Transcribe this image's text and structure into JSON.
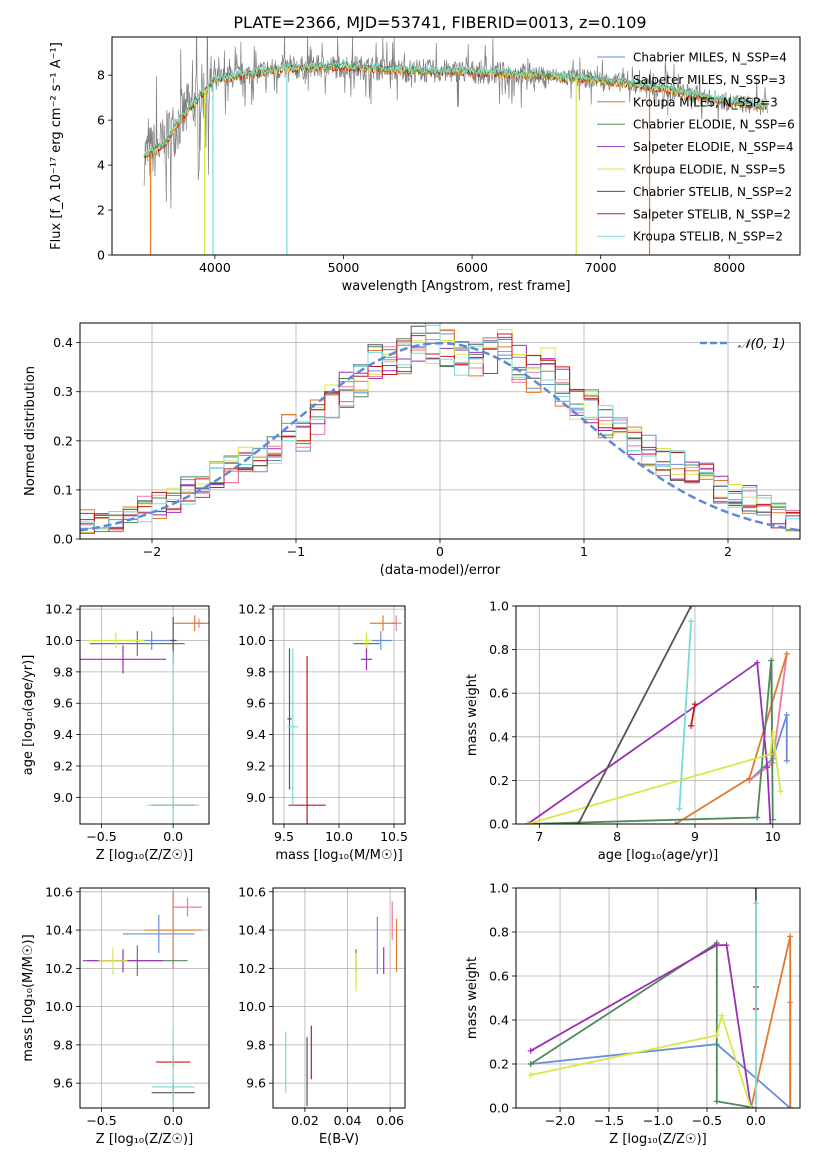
{
  "figure": {
    "title": "PLATE=2366, MJD=53741, FIBERID=0013, z=0.109"
  },
  "colors": {
    "chabrier_miles": "#6a8ddb",
    "salpeter_miles": "#f07aa0",
    "kroupa_miles": "#e07b30",
    "chabrier_elodie": "#4f8a5a",
    "salpeter_elodie": "#9b2fb5",
    "kroupa_elodie": "#d8e84a",
    "chabrier_stelib": "#555555",
    "salpeter_stelib": "#c41a1a",
    "kroupa_stelib": "#7adbd8",
    "data": "#808080",
    "normal": "#5b8ad8"
  },
  "chart_data": [
    {
      "id": "spectrum",
      "type": "line",
      "xlabel": "wavelength [Angstrom, rest frame]",
      "ylabel": "Flux [f_λ 10⁻¹⁷ erg cm⁻² s⁻¹ A⁻¹]",
      "xlim": [
        3200,
        8550
      ],
      "ylim": [
        0,
        9.7
      ],
      "xticks": [
        "4000",
        "5000",
        "6000",
        "7000",
        "8000"
      ],
      "yticks": [
        "0",
        "2",
        "4",
        "6",
        "8"
      ],
      "continuum": {
        "x": [
          3450,
          3600,
          3700,
          3800,
          3900,
          4000,
          4200,
          4500,
          5000,
          5500,
          6000,
          6500,
          7000,
          7500,
          8000,
          8300
        ],
        "y": [
          4.4,
          4.9,
          5.8,
          6.5,
          7.2,
          7.8,
          8.0,
          8.3,
          8.4,
          8.2,
          8.15,
          8.0,
          7.8,
          7.4,
          6.8,
          6.6
        ]
      },
      "legend": [
        {
          "label": "Chabrier MILES, N_SSP=4",
          "color": "chabrier_miles"
        },
        {
          "label": "Salpeter MILES, N_SSP=3",
          "color": "salpeter_miles"
        },
        {
          "label": "Kroupa MILES, N_SSP=3",
          "color": "kroupa_miles"
        },
        {
          "label": "Chabrier ELODIE, N_SSP=6",
          "color": "chabrier_elodie"
        },
        {
          "label": "Salpeter ELODIE, N_SSP=4",
          "color": "salpeter_elodie"
        },
        {
          "label": "Kroupa ELODIE, N_SSP=5",
          "color": "kroupa_elodie"
        },
        {
          "label": "Chabrier STELIB, N_SSP=2",
          "color": "chabrier_stelib"
        },
        {
          "label": "Salpeter STELIB, N_SSP=2",
          "color": "salpeter_stelib"
        },
        {
          "label": "Kroupa STELIB, N_SSP=2",
          "color": "kroupa_stelib"
        }
      ]
    },
    {
      "id": "residuals",
      "type": "bar",
      "xlabel": "(data-model)/error",
      "ylabel": "Normed distribution",
      "xlim": [
        -2.5,
        2.5
      ],
      "ylim": [
        0,
        0.44
      ],
      "xticks": [
        "−2",
        "−1",
        "0",
        "1",
        "2"
      ],
      "yticks": [
        "0.0",
        "0.1",
        "0.2",
        "0.3",
        "0.4"
      ],
      "legend": "𝒩(0, 1)",
      "bin_width": 0.1,
      "hist": [
        0.035,
        0.032,
        0.04,
        0.045,
        0.06,
        0.07,
        0.08,
        0.1,
        0.11,
        0.13,
        0.14,
        0.16,
        0.17,
        0.18,
        0.22,
        0.21,
        0.25,
        0.28,
        0.3,
        0.33,
        0.36,
        0.37,
        0.38,
        0.39,
        0.4,
        0.39,
        0.37,
        0.36,
        0.38,
        0.39,
        0.36,
        0.34,
        0.35,
        0.31,
        0.28,
        0.27,
        0.24,
        0.23,
        0.2,
        0.18,
        0.16,
        0.15,
        0.14,
        0.13,
        0.1,
        0.09,
        0.08,
        0.065,
        0.05,
        0.04
      ]
    },
    {
      "id": "age_vs_Z",
      "type": "scatter",
      "xlabel": "Z [log₁₀(Z/Z☉)]",
      "ylabel": "age  [log₁₀(age/yr)]",
      "xlim": [
        -0.65,
        0.25
      ],
      "ylim": [
        8.83,
        10.22
      ],
      "xticks": [
        "−0.5",
        "0.0"
      ],
      "yticks": [
        "9.0",
        "9.2",
        "9.4",
        "9.6",
        "9.8",
        "10.0",
        "10.2"
      ],
      "points": [
        {
          "c": "chabrier_miles",
          "x": -0.15,
          "xerr": 0.18,
          "y": 10.0,
          "yerr": 0.06
        },
        {
          "c": "salpeter_miles",
          "x": 0.18,
          "xerr": 0.03,
          "y": 10.11,
          "yerr": 0.03
        },
        {
          "c": "kroupa_miles",
          "x": 0.15,
          "xerr": 0.15,
          "y": 10.11,
          "yerr": 0.05
        },
        {
          "c": "chabrier_elodie",
          "x": -0.25,
          "xerr": 0.33,
          "y": 9.98,
          "yerr": 0.08
        },
        {
          "c": "salpeter_elodie",
          "x": -0.35,
          "xerr": 0.3,
          "y": 9.88,
          "yerr": 0.09
        },
        {
          "c": "kroupa_elodie",
          "x": -0.4,
          "xerr": 0.2,
          "y": 10.0,
          "yerr": 0.05
        },
        {
          "c": "chabrier_stelib",
          "x": 0.0,
          "xerr": 0.02,
          "y": 10.0,
          "yerr": 0.15
        },
        {
          "c": "salpeter_stelib",
          "x": 0.0,
          "xerr": 0.15,
          "y": 8.95,
          "yerr": 0.02
        },
        {
          "c": "kroupa_stelib",
          "x": 0.0,
          "xerr": 0.18,
          "y": 8.95,
          "yerr": 0.98
        }
      ]
    },
    {
      "id": "age_vs_mass",
      "type": "scatter",
      "xlabel": "mass [log₁₀(M/M☉)]",
      "ylabel": "",
      "xlim": [
        9.4,
        10.6
      ],
      "ylim": [
        8.83,
        10.22
      ],
      "xticks": [
        "9.5",
        "10.0",
        "10.5"
      ],
      "yticks": [
        "9.0",
        "9.2",
        "9.4",
        "9.6",
        "9.8",
        "10.0",
        "10.2"
      ],
      "points": [
        {
          "c": "chabrier_miles",
          "x": 10.38,
          "xerr": 0.1,
          "y": 10.0,
          "yerr": 0.06
        },
        {
          "c": "salpeter_miles",
          "x": 10.52,
          "xerr": 0.05,
          "y": 10.11,
          "yerr": 0.05
        },
        {
          "c": "kroupa_miles",
          "x": 10.4,
          "xerr": 0.12,
          "y": 10.11,
          "yerr": 0.05
        },
        {
          "c": "chabrier_elodie",
          "x": 10.25,
          "xerr": 0.12,
          "y": 9.98,
          "yerr": 0.06
        },
        {
          "c": "salpeter_elodie",
          "x": 10.25,
          "xerr": 0.05,
          "y": 9.88,
          "yerr": 0.07
        },
        {
          "c": "kroupa_elodie",
          "x": 10.25,
          "xerr": 0.05,
          "y": 10.0,
          "yerr": 0.05
        },
        {
          "c": "chabrier_stelib",
          "x": 9.55,
          "xerr": 0.02,
          "y": 9.5,
          "yerr": 0.45
        },
        {
          "c": "salpeter_stelib",
          "x": 9.71,
          "xerr": 0.17,
          "y": 8.95,
          "yerr": 0.95
        },
        {
          "c": "kroupa_stelib",
          "x": 9.58,
          "xerr": 0.05,
          "y": 9.45,
          "yerr": 0.5
        }
      ]
    },
    {
      "id": "massweight_vs_age",
      "type": "line",
      "xlabel": "age  [log₁₀(age/yr)]",
      "ylabel": "mass weight",
      "xlim": [
        6.7,
        10.35
      ],
      "ylim": [
        0,
        1.0
      ],
      "xticks": [
        "7",
        "8",
        "9",
        "10"
      ],
      "yticks": [
        "0.0",
        "0.2",
        "0.4",
        "0.6",
        "0.8",
        "1.0"
      ],
      "series": [
        {
          "c": "chabrier_miles",
          "x": [
            9.7,
            10.0,
            10.18,
            10.18
          ],
          "y": [
            0.2,
            0.3,
            0.5,
            0.29
          ]
        },
        {
          "c": "salpeter_miles",
          "x": [
            9.7,
            10.0,
            10.18
          ],
          "y": [
            0.2,
            0.28,
            0.78
          ]
        },
        {
          "c": "kroupa_miles",
          "x": [
            8.75,
            9.7,
            10.18
          ],
          "y": [
            0.0,
            0.21,
            0.78
          ]
        },
        {
          "c": "chabrier_elodie",
          "x": [
            6.85,
            9.8,
            9.98,
            10.0
          ],
          "y": [
            0.0,
            0.03,
            0.75,
            0.02
          ]
        },
        {
          "c": "salpeter_elodie",
          "x": [
            6.85,
            9.8,
            9.93,
            9.97
          ],
          "y": [
            0.0,
            0.74,
            0.26,
            0.0
          ]
        },
        {
          "c": "kroupa_elodie",
          "x": [
            6.85,
            9.97,
            10.0,
            10.1
          ],
          "y": [
            0.0,
            0.32,
            0.42,
            0.15
          ]
        },
        {
          "c": "chabrier_stelib",
          "x": [
            7.5,
            8.95
          ],
          "y": [
            0.0,
            1.0
          ]
        },
        {
          "c": "salpeter_stelib",
          "x": [
            8.95,
            9.0
          ],
          "y": [
            0.45,
            0.55
          ]
        },
        {
          "c": "kroupa_stelib",
          "x": [
            8.8,
            8.95
          ],
          "y": [
            0.07,
            0.93
          ]
        }
      ]
    },
    {
      "id": "mass_vs_Z",
      "type": "scatter",
      "xlabel": "Z [log₁₀(Z/Z☉)]",
      "ylabel": "mass [log₁₀(M/M☉)]",
      "xlim": [
        -0.65,
        0.25
      ],
      "ylim": [
        9.47,
        10.62
      ],
      "xticks": [
        "−0.5",
        "0.0"
      ],
      "yticks": [
        "9.6",
        "9.8",
        "10.0",
        "10.2",
        "10.4",
        "10.6"
      ],
      "points": [
        {
          "c": "chabrier_miles",
          "x": -0.1,
          "xerr": 0.25,
          "y": 10.38,
          "yerr": 0.1
        },
        {
          "c": "salpeter_miles",
          "x": 0.1,
          "xerr": 0.1,
          "y": 10.52,
          "yerr": 0.05
        },
        {
          "c": "kroupa_miles",
          "x": 0.0,
          "xerr": 0.2,
          "y": 10.4,
          "yerr": 0.2
        },
        {
          "c": "chabrier_elodie",
          "x": -0.25,
          "xerr": 0.35,
          "y": 10.24,
          "yerr": 0.08
        },
        {
          "c": "salpeter_elodie",
          "x": -0.35,
          "xerr": 0.28,
          "y": 10.24,
          "yerr": 0.06
        },
        {
          "c": "kroupa_elodie",
          "x": -0.42,
          "xerr": 0.1,
          "y": 10.24,
          "yerr": 0.07
        },
        {
          "c": "chabrier_stelib",
          "x": 0.0,
          "xerr": 0.15,
          "y": 9.55,
          "yerr": 0.05
        },
        {
          "c": "salpeter_stelib",
          "x": 0.0,
          "xerr": 0.12,
          "y": 9.71,
          "yerr": 0.03
        },
        {
          "c": "kroupa_stelib",
          "x": 0.0,
          "xerr": 0.15,
          "y": 9.58,
          "yerr": 0.3
        }
      ]
    },
    {
      "id": "mass_vs_EBV",
      "type": "scatter",
      "xlabel": "E(B-V)",
      "ylabel": "",
      "xlim": [
        0.005,
        0.067
      ],
      "ylim": [
        9.47,
        10.62
      ],
      "xticks": [
        "0.02",
        "0.04",
        "0.06"
      ],
      "yticks": [
        "9.6",
        "9.8",
        "10.0",
        "10.2",
        "10.4",
        "10.6"
      ],
      "points": [
        {
          "c": "chabrier_miles",
          "x": 0.054,
          "y": 10.32,
          "yerr": 0.15
        },
        {
          "c": "salpeter_miles",
          "x": 0.061,
          "y": 10.45,
          "yerr": 0.1
        },
        {
          "c": "kroupa_miles",
          "x": 0.063,
          "y": 10.32,
          "yerr": 0.14
        },
        {
          "c": "chabrier_elodie",
          "x": 0.044,
          "y": 10.24,
          "yerr": 0.06
        },
        {
          "c": "salpeter_elodie",
          "x": 0.057,
          "y": 10.24,
          "yerr": 0.07
        },
        {
          "c": "kroupa_elodie",
          "x": 0.044,
          "y": 10.18,
          "yerr": 0.1
        },
        {
          "c": "chabrier_stelib",
          "x": 0.021,
          "y": 9.66,
          "yerr": 0.18
        },
        {
          "c": "salpeter_stelib",
          "x": 0.023,
          "y": 9.76,
          "yerr": 0.14
        },
        {
          "c": "kroupa_stelib",
          "x": 0.011,
          "y": 9.71,
          "yerr": 0.16
        }
      ]
    },
    {
      "id": "massweight_vs_Z",
      "type": "line",
      "xlabel": "Z [log₁₀(Z/Z☉)]",
      "ylabel": "mass weight",
      "xlim": [
        -2.45,
        0.45
      ],
      "ylim": [
        0,
        1.0
      ],
      "xticks": [
        "−2.0",
        "−1.5",
        "−1.0",
        "−0.5",
        "0.0"
      ],
      "yticks": [
        "0.0",
        "0.2",
        "0.4",
        "0.6",
        "0.8",
        "1.0"
      ],
      "series": [
        {
          "c": "chabrier_miles",
          "x": [
            -2.3,
            -0.4,
            0.35,
            0.35
          ],
          "y": [
            0.2,
            0.29,
            0.0,
            0.0
          ]
        },
        {
          "c": "salpeter_miles",
          "x": [
            0.35,
            0.35
          ],
          "y": [
            0.0,
            0.48
          ]
        },
        {
          "c": "kroupa_miles",
          "x": [
            -0.05,
            0.35,
            0.35
          ],
          "y": [
            0.0,
            0.78,
            0.0
          ]
        },
        {
          "c": "chabrier_elodie",
          "x": [
            -2.3,
            -0.4,
            -0.4,
            0.0
          ],
          "y": [
            0.2,
            0.75,
            0.03,
            0.0
          ]
        },
        {
          "c": "salpeter_elodie",
          "x": [
            -2.3,
            -0.4,
            -0.3,
            -0.05
          ],
          "y": [
            0.26,
            0.74,
            0.74,
            0.0
          ]
        },
        {
          "c": "kroupa_elodie",
          "x": [
            -2.3,
            -0.4,
            -0.35,
            -0.05
          ],
          "y": [
            0.15,
            0.33,
            0.42,
            0.0
          ]
        },
        {
          "c": "chabrier_stelib",
          "x": [
            0.0,
            0.0
          ],
          "y": [
            0.45,
            1.0
          ]
        },
        {
          "c": "salpeter_stelib",
          "x": [
            0.0,
            0.0
          ],
          "y": [
            0.45,
            0.55
          ]
        },
        {
          "c": "kroupa_stelib",
          "x": [
            0.0,
            0.0
          ],
          "y": [
            0.0,
            0.93
          ]
        }
      ]
    }
  ]
}
